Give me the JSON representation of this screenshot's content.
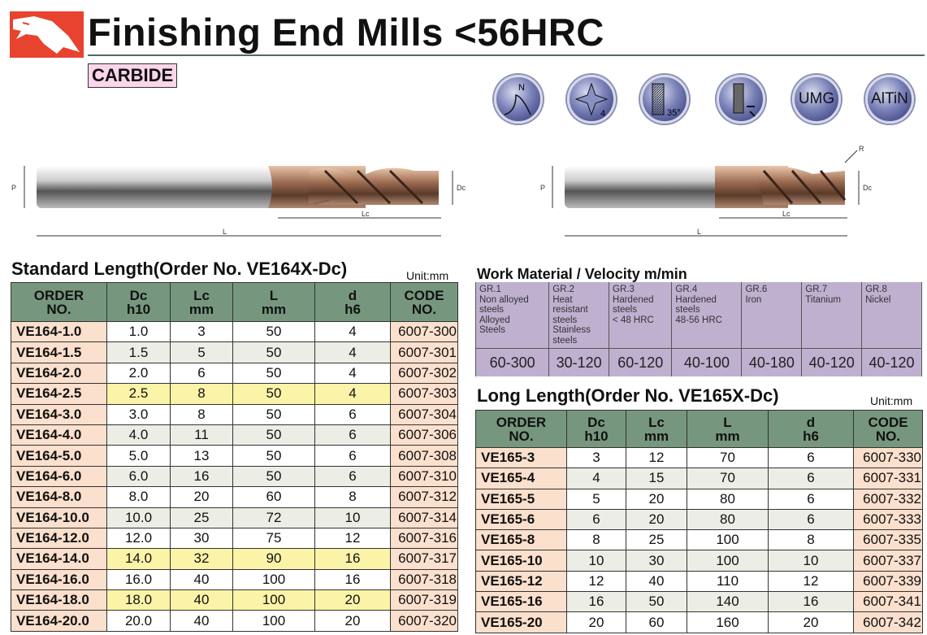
{
  "header": {
    "title": "Finishing End Mills <56HRC",
    "material_badge": "CARBIDE"
  },
  "feature_icons": [
    {
      "name": "n-type-icon",
      "label": "N"
    },
    {
      "name": "four-flute-icon",
      "label": "4"
    },
    {
      "name": "helix-35-icon",
      "label": "35°"
    },
    {
      "name": "center-cutting-icon",
      "label": ""
    },
    {
      "name": "umg-icon",
      "label": "UMG"
    },
    {
      "name": "altin-coating-icon",
      "label": "AlTiN"
    }
  ],
  "drawing_labels": {
    "p": "P",
    "dc": "Dc",
    "l": "L",
    "lc": "Lc",
    "r": "R"
  },
  "standard": {
    "title": "Standard Length(Order No. VE164X-Dc)",
    "unit": "Unit:mm",
    "headers": [
      [
        "ORDER",
        "NO."
      ],
      [
        "Dc",
        "h10"
      ],
      [
        "Lc",
        "mm"
      ],
      [
        "L",
        "mm"
      ],
      [
        "d",
        "h6"
      ],
      [
        "CODE",
        "NO."
      ]
    ],
    "rows": [
      {
        "order": "VE164-1.0",
        "dc": "1.0",
        "lc": "3",
        "l": "50",
        "d": "4",
        "code": "6007-300"
      },
      {
        "order": "VE164-1.5",
        "dc": "1.5",
        "lc": "5",
        "l": "50",
        "d": "4",
        "code": "6007-301"
      },
      {
        "order": "VE164-2.0",
        "dc": "2.0",
        "lc": "6",
        "l": "50",
        "d": "4",
        "code": "6007-302"
      },
      {
        "order": "VE164-2.5",
        "dc": "2.5",
        "lc": "8",
        "l": "50",
        "d": "4",
        "code": "6007-303",
        "highlighted": true
      },
      {
        "order": "VE164-3.0",
        "dc": "3.0",
        "lc": "8",
        "l": "50",
        "d": "6",
        "code": "6007-304"
      },
      {
        "order": "VE164-4.0",
        "dc": "4.0",
        "lc": "11",
        "l": "50",
        "d": "6",
        "code": "6007-306"
      },
      {
        "order": "VE164-5.0",
        "dc": "5.0",
        "lc": "13",
        "l": "50",
        "d": "6",
        "code": "6007-308"
      },
      {
        "order": "VE164-6.0",
        "dc": "6.0",
        "lc": "16",
        "l": "50",
        "d": "6",
        "code": "6007-310"
      },
      {
        "order": "VE164-8.0",
        "dc": "8.0",
        "lc": "20",
        "l": "60",
        "d": "8",
        "code": "6007-312"
      },
      {
        "order": "VE164-10.0",
        "dc": "10.0",
        "lc": "25",
        "l": "72",
        "d": "10",
        "code": "6007-314"
      },
      {
        "order": "VE164-12.0",
        "dc": "12.0",
        "lc": "30",
        "l": "75",
        "d": "12",
        "code": "6007-316"
      },
      {
        "order": "VE164-14.0",
        "dc": "14.0",
        "lc": "32",
        "l": "90",
        "d": "16",
        "code": "6007-317",
        "highlighted": true
      },
      {
        "order": "VE164-16.0",
        "dc": "16.0",
        "lc": "40",
        "l": "100",
        "d": "16",
        "code": "6007-318"
      },
      {
        "order": "VE164-18.0",
        "dc": "18.0",
        "lc": "40",
        "l": "100",
        "d": "20",
        "code": "6007-319",
        "highlighted": true
      },
      {
        "order": "VE164-20.0",
        "dc": "20.0",
        "lc": "40",
        "l": "100",
        "d": "20",
        "code": "6007-320"
      }
    ]
  },
  "work_material": {
    "title": "Work Material / Velocity m/min",
    "groups": [
      {
        "lines": [
          "GR.1",
          "Non alloyed",
          "steels",
          "Alloyed",
          "Steels"
        ],
        "velocity": "60-300"
      },
      {
        "lines": [
          "GR.2",
          "Heat",
          "resistant",
          "steels",
          "Stainless",
          "steels"
        ],
        "velocity": "30-120"
      },
      {
        "lines": [
          "GR.3",
          "Hardened",
          "steels",
          "< 48 HRC"
        ],
        "velocity": "60-120"
      },
      {
        "lines": [
          "GR.4",
          "Hardened",
          "steels",
          "48-56 HRC"
        ],
        "velocity": "40-100"
      },
      {
        "lines": [
          "GR.6",
          "Iron"
        ],
        "velocity": "40-180"
      },
      {
        "lines": [
          "GR.7",
          "Titanium"
        ],
        "velocity": "40-120"
      },
      {
        "lines": [
          "GR.8",
          "Nickel"
        ],
        "velocity": "40-120"
      }
    ]
  },
  "long": {
    "title": "Long Length(Order No. VE165X-Dc)",
    "unit": "Unit:mm",
    "headers": [
      [
        "ORDER",
        "NO."
      ],
      [
        "Dc",
        "h10"
      ],
      [
        "Lc",
        "mm"
      ],
      [
        "L",
        "mm"
      ],
      [
        "d",
        "h6"
      ],
      [
        "CODE",
        "NO."
      ]
    ],
    "rows": [
      {
        "order": "VE165-3",
        "dc": "3",
        "lc": "12",
        "l": "70",
        "d": "6",
        "code": "6007-330"
      },
      {
        "order": "VE165-4",
        "dc": "4",
        "lc": "15",
        "l": "70",
        "d": "6",
        "code": "6007-331"
      },
      {
        "order": "VE165-5",
        "dc": "5",
        "lc": "20",
        "l": "80",
        "d": "6",
        "code": "6007-332"
      },
      {
        "order": "VE165-6",
        "dc": "6",
        "lc": "20",
        "l": "80",
        "d": "6",
        "code": "6007-333"
      },
      {
        "order": "VE165-8",
        "dc": "8",
        "lc": "25",
        "l": "100",
        "d": "8",
        "code": "6007-335"
      },
      {
        "order": "VE165-10",
        "dc": "10",
        "lc": "30",
        "l": "100",
        "d": "10",
        "code": "6007-337"
      },
      {
        "order": "VE165-12",
        "dc": "12",
        "lc": "40",
        "l": "110",
        "d": "12",
        "code": "6007-339"
      },
      {
        "order": "VE165-16",
        "dc": "16",
        "lc": "50",
        "l": "140",
        "d": "16",
        "code": "6007-341"
      },
      {
        "order": "VE165-20",
        "dc": "20",
        "lc": "60",
        "l": "160",
        "d": "20",
        "code": "6007-342"
      }
    ]
  },
  "colors": {
    "header_green": "#76977e",
    "order_peach": "#fbe0cd",
    "highlight_yellow": "#fbf3a8",
    "material_purple": "#bfb0d0",
    "logo_red": "#e8432e"
  }
}
